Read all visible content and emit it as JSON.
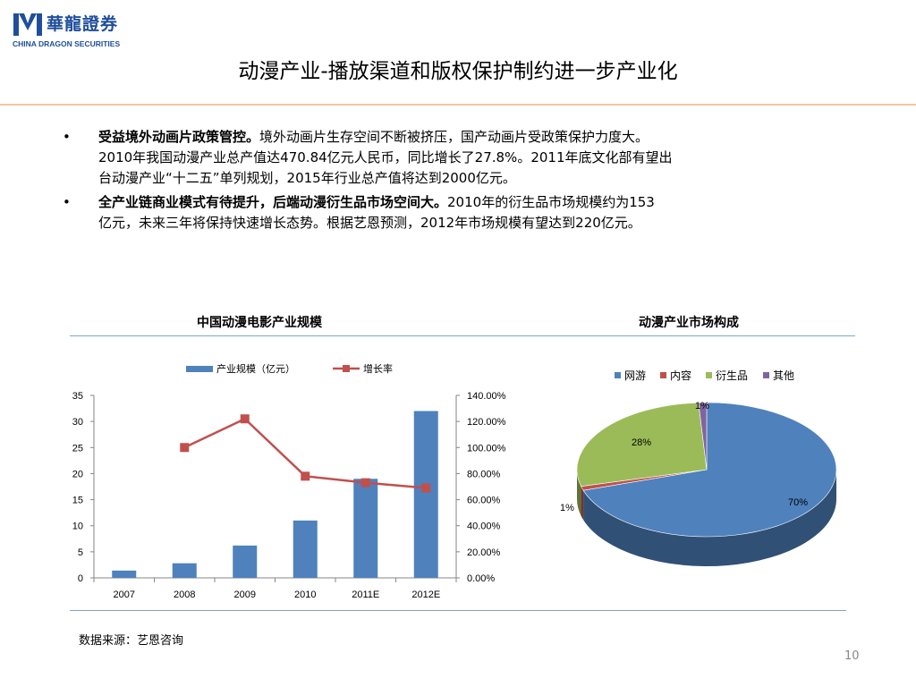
{
  "header": {
    "logo_cn": "華龍證券",
    "logo_en": "CHINA DRAGON SECURITIES",
    "title": "动漫产业-播放渠道和版权保护制约进一步产业化"
  },
  "bullets": [
    {
      "symbol": "•",
      "lead": "受益境外动画片政策管控。",
      "lines": [
        "境外动画片生存空间不断被挤压，国产动画片受政策保护力度大。",
        "2010年我国动漫产业总产值达470.84亿元人民币，同比增长了27.8%。2011年底文化部有望出",
        "台动漫产业“十二五”单列规划，2015年行业总产值将达到2000亿元。"
      ]
    },
    {
      "symbol": "•",
      "lead": "全产业链商业模式有待提升，后端动漫衍生品市场空间大。",
      "lines": [
        "2010年的衍生品市场规模约为153",
        "亿元，未来三年将保持快速增长态势。根据艺恩预测，2012年市场规模有望达到220亿元。"
      ]
    }
  ],
  "charts": {
    "left_title": "中国动漫电影产业规模",
    "right_title": "动漫产业市场构成"
  },
  "chart_data": [
    {
      "type": "bar",
      "title": "中国动漫电影产业规模",
      "categories": [
        "2007",
        "2008",
        "2009",
        "2010",
        "2011E",
        "2012E"
      ],
      "series": [
        {
          "name": "产业规模（亿元）",
          "type": "bar",
          "axis": "left",
          "values": [
            1.4,
            2.8,
            6.2,
            11.0,
            19.0,
            32.0
          ],
          "color": "#4f81bd"
        },
        {
          "name": "增长率",
          "type": "line",
          "axis": "right",
          "values": [
            null,
            1.0,
            1.22,
            0.78,
            0.73,
            0.69
          ],
          "color": "#c0504d"
        }
      ],
      "ylim": [
        0,
        35
      ],
      "yticks": [
        "0",
        "5",
        "10",
        "15",
        "20",
        "25",
        "30",
        "35"
      ],
      "y2lim": [
        0,
        1.4
      ],
      "y2ticks": [
        "0.00%",
        "20.00%",
        "40.00%",
        "60.00%",
        "80.00%",
        "100.00%",
        "120.00%",
        "140.00%"
      ],
      "legend": "top",
      "grid": false
    },
    {
      "type": "pie",
      "title": "动漫产业市场构成",
      "categories": [
        "网游",
        "内容",
        "衍生品",
        "其他"
      ],
      "values": [
        70,
        1,
        28,
        1
      ],
      "labels": [
        "70%",
        "1%",
        "28%",
        "1%"
      ],
      "colors": [
        "#4f81bd",
        "#c0504d",
        "#9bbb59",
        "#8064a2"
      ],
      "legend": "top"
    }
  ],
  "footer": {
    "source": "数据来源：艺恩咨询",
    "page_number": "10"
  }
}
